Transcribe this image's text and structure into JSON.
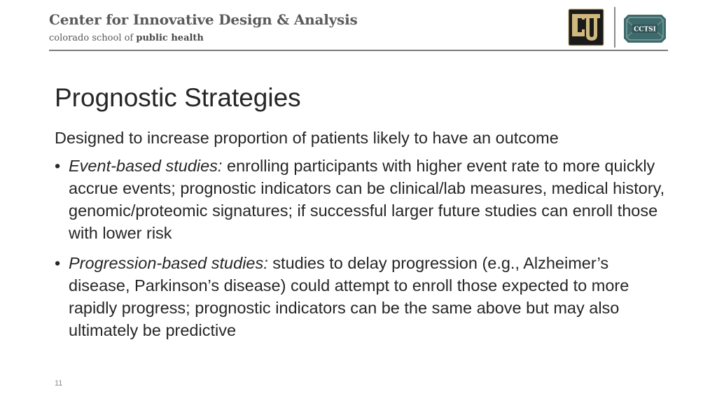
{
  "header": {
    "org_name": "Center for Innovative Design & Analysis",
    "school_prefix": "colorado school of",
    "school_bold": "public health",
    "cu_logo": "cu-logo-icon",
    "cctsi_label": "CCTSI"
  },
  "slide": {
    "title": "Prognostic Strategies",
    "intro": "Designed to increase proportion of patients likely to have an outcome",
    "bullet_marker": "•",
    "bullets": [
      {
        "term": "Event-based studies:",
        "text": " enrolling participants with higher event rate to more quickly accrue events; prognostic indicators can be clinical/lab measures, medical history, genomic/proteomic signatures; if successful larger future studies can enroll those with lower risk"
      },
      {
        "term": "Progression-based studies:",
        "text": " studies to delay progression (e.g., Alzheimer’s disease, Parkinson’s disease) could attempt to enroll those expected to more rapidly progress; prognostic indicators can be the same above but may also ultimately be predictive"
      }
    ],
    "page_number": "11"
  },
  "colors": {
    "header_text": "#5a5a5a",
    "body_text": "#262626",
    "cu_gold": "#cfb87c",
    "cctsi_teal": "#3f6a6c"
  }
}
